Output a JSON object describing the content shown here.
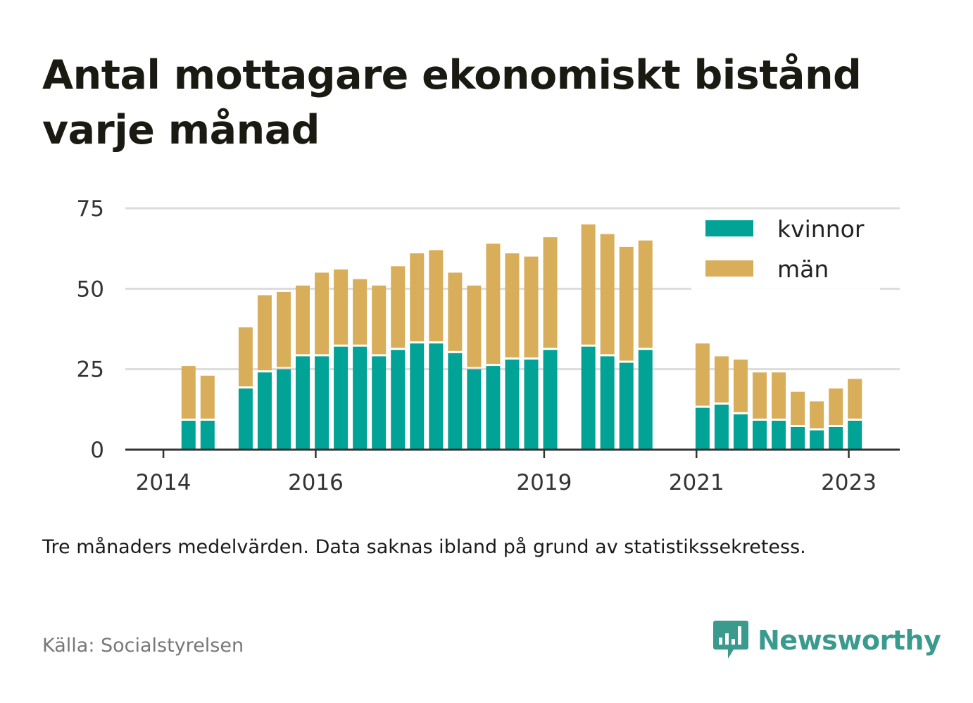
{
  "title": "Antal mottagare ekonomiskt bistånd varje månad",
  "note": "Tre månaders medelvärden. Data saknas ibland på grund av statistikssekretess.",
  "source": "Källa: Socialstyrelsen",
  "brand": {
    "name": "Newsworthy",
    "icon": "newsworthy-logo-icon",
    "color": "#3a9a8e"
  },
  "chart_data": {
    "type": "bar",
    "stacked": true,
    "title": "Antal mottagare ekonomiskt bistånd varje månad",
    "ylim": [
      0,
      75
    ],
    "yticks": [
      0,
      25,
      50,
      75
    ],
    "xticks": [
      {
        "label": "2014",
        "x": 2014.0
      },
      {
        "label": "2016",
        "x": 2016.0
      },
      {
        "label": "2019",
        "x": 2019.0
      },
      {
        "label": "2021",
        "x": 2021.0
      },
      {
        "label": "2023",
        "x": 2023.0
      }
    ],
    "xlim": [
      2013.5,
      2023.67
    ],
    "grid": true,
    "legend_position": "top-right",
    "x": [
      2014.33,
      2014.58,
      2015.08,
      2015.33,
      2015.58,
      2015.83,
      2016.08,
      2016.33,
      2016.58,
      2016.83,
      2017.08,
      2017.33,
      2017.58,
      2017.83,
      2018.08,
      2018.33,
      2018.58,
      2018.83,
      2019.08,
      2019.58,
      2019.83,
      2020.08,
      2020.33,
      2021.08,
      2021.33,
      2021.58,
      2021.83,
      2022.08,
      2022.33,
      2022.58,
      2022.83,
      2023.08
    ],
    "series": [
      {
        "name": "kvinnor",
        "color": "#00a396",
        "values": [
          9,
          9,
          19,
          24,
          25,
          29,
          29,
          32,
          32,
          29,
          31,
          33,
          33,
          30,
          25,
          26,
          28,
          28,
          31,
          32,
          29,
          27,
          31,
          13,
          14,
          11,
          9,
          9,
          7,
          6,
          7,
          9
        ]
      },
      {
        "name": "män",
        "color": "#d9ae5b",
        "values": [
          17,
          14,
          19,
          24,
          24,
          22,
          26,
          24,
          21,
          22,
          26,
          28,
          29,
          25,
          26,
          38,
          33,
          32,
          35,
          38,
          38,
          36,
          34,
          20,
          15,
          17,
          15,
          15,
          11,
          9,
          12,
          13
        ]
      }
    ]
  }
}
